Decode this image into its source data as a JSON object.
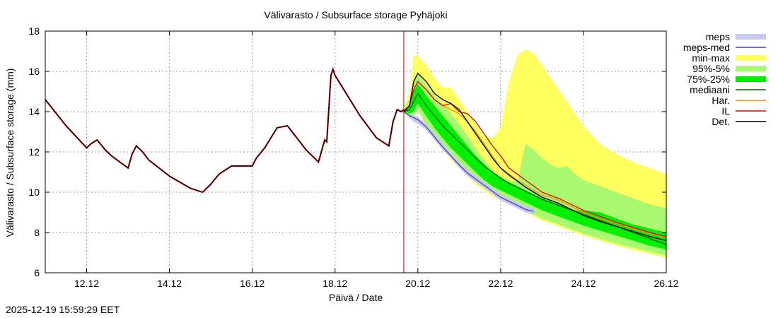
{
  "chart_data": {
    "type": "line",
    "title": "Välivarasto / Subsurface storage  Pyhäjoki",
    "xlabel": "Päivä / Date",
    "ylabel": "Välivarasto / Subsurface storage (mm)",
    "x_unit": "days since 11.12 00:00",
    "xlim": [
      0,
      15
    ],
    "ylim": [
      6,
      18
    ],
    "yticks": [
      6,
      8,
      10,
      12,
      14,
      16,
      18
    ],
    "xticks": [
      {
        "x": 1,
        "label": "12.12"
      },
      {
        "x": 3,
        "label": "14.12"
      },
      {
        "x": 5,
        "label": "16.12"
      },
      {
        "x": 7,
        "label": "18.12"
      },
      {
        "x": 9,
        "label": "20.12"
      },
      {
        "x": 11,
        "label": "22.12"
      },
      {
        "x": 13,
        "label": "24.12"
      },
      {
        "x": 15,
        "label": "26.12"
      }
    ],
    "grid": true,
    "forecast_start_x": 8.66,
    "colors": {
      "meps": "#c8c8f0",
      "meps_med": "#4040c0",
      "minmax": "#ffff60",
      "p95_5": "#a8f870",
      "p75_25": "#00ee00",
      "median": "#006400",
      "har": "#ff8c00",
      "il": "#ee0000",
      "det": "#000000",
      "vline": "#cc0000",
      "grid": "#a0a0a0"
    },
    "legend": [
      {
        "label": "meps",
        "style": "band",
        "key": "meps"
      },
      {
        "label": "meps-med",
        "style": "line",
        "key": "meps_med"
      },
      {
        "label": "min-max",
        "style": "band",
        "key": "minmax"
      },
      {
        "label": "95%-5%",
        "style": "band",
        "key": "p95_5"
      },
      {
        "label": "75%-25%",
        "style": "band",
        "key": "p75_25"
      },
      {
        "label": "mediaani",
        "style": "line",
        "key": "median"
      },
      {
        "label": "Har.",
        "style": "line",
        "key": "har"
      },
      {
        "label": "IL",
        "style": "line",
        "key": "il"
      },
      {
        "label": "Det.",
        "style": "line",
        "key": "det"
      }
    ],
    "observed": {
      "x": [
        0,
        0.5,
        1.0,
        1.1,
        1.25,
        1.45,
        1.6,
        2.0,
        2.1,
        2.2,
        2.35,
        2.5,
        3.0,
        3.5,
        3.8,
        4.0,
        4.2,
        4.5,
        4.7,
        5.0,
        5.1,
        5.3,
        5.6,
        5.85,
        6.0,
        6.3,
        6.6,
        6.75,
        6.8,
        6.9,
        6.95,
        7.0,
        7.3,
        7.6,
        8.0,
        8.3,
        8.4,
        8.5,
        8.6,
        8.66
      ],
      "y": [
        14.6,
        13.3,
        12.2,
        12.4,
        12.6,
        12.1,
        11.8,
        11.2,
        11.9,
        12.3,
        12.0,
        11.6,
        10.8,
        10.2,
        10.0,
        10.4,
        10.9,
        11.3,
        11.3,
        11.3,
        11.7,
        12.2,
        13.2,
        13.3,
        12.9,
        12.1,
        11.5,
        12.6,
        12.5,
        15.8,
        16.1,
        15.8,
        14.8,
        13.8,
        12.7,
        12.3,
        13.5,
        14.1,
        14.0,
        14.1
      ]
    },
    "forecast_x": [
      8.66,
      8.8,
      8.9,
      9.0,
      9.2,
      9.4,
      9.6,
      9.8,
      10.0,
      10.2,
      10.4,
      10.6,
      10.8,
      11.0,
      11.2,
      11.4,
      11.6,
      11.8,
      12.0,
      12.2,
      12.4,
      12.6,
      12.8,
      13.0,
      13.4,
      13.8,
      14.2,
      14.6,
      15.0
    ],
    "series": [
      {
        "key": "minmax",
        "name": "min-max",
        "lower": [
          14.0,
          13.8,
          13.8,
          14.1,
          13.2,
          12.6,
          12.1,
          11.6,
          11.2,
          10.8,
          10.4,
          10.1,
          9.8,
          9.6,
          9.4,
          9.2,
          9.0,
          8.8,
          8.6,
          8.45,
          8.3,
          8.15,
          8.0,
          7.85,
          7.6,
          7.35,
          7.15,
          6.95,
          6.75
        ],
        "upper": [
          14.2,
          15.0,
          16.8,
          16.8,
          16.3,
          15.7,
          15.2,
          15.2,
          14.6,
          14.0,
          13.4,
          12.8,
          12.7,
          13.2,
          15.5,
          16.8,
          17.1,
          16.9,
          16.3,
          15.7,
          15.1,
          14.5,
          13.9,
          13.3,
          12.4,
          11.9,
          11.5,
          11.2,
          10.9
        ]
      },
      {
        "key": "p95_5",
        "name": "95%-5%",
        "lower": [
          14.0,
          13.8,
          13.8,
          14.1,
          13.3,
          12.7,
          12.2,
          11.7,
          11.3,
          10.9,
          10.5,
          10.2,
          9.9,
          9.7,
          9.5,
          9.3,
          9.1,
          8.9,
          8.7,
          8.55,
          8.4,
          8.25,
          8.1,
          7.95,
          7.7,
          7.45,
          7.25,
          7.05,
          6.85
        ],
        "upper": [
          14.1,
          14.6,
          15.6,
          15.9,
          15.3,
          14.8,
          14.4,
          13.9,
          13.4,
          12.8,
          12.2,
          11.6,
          11.1,
          10.8,
          10.6,
          10.5,
          12.4,
          12.1,
          11.7,
          11.4,
          11.2,
          11.3,
          10.9,
          10.6,
          10.3,
          10.0,
          9.7,
          9.4,
          9.2
        ]
      },
      {
        "key": "p75_25",
        "name": "75%-25%",
        "lower": [
          14.0,
          13.9,
          14.0,
          14.4,
          13.8,
          13.2,
          12.7,
          12.2,
          11.8,
          11.4,
          11.0,
          10.6,
          10.3,
          10.1,
          9.9,
          9.7,
          9.5,
          9.3,
          9.1,
          8.95,
          8.8,
          8.65,
          8.5,
          8.35,
          8.1,
          7.85,
          7.6,
          7.35,
          7.15
        ],
        "upper": [
          14.1,
          14.3,
          15.0,
          15.4,
          14.8,
          14.3,
          13.8,
          13.3,
          12.8,
          12.3,
          11.8,
          11.4,
          11.0,
          10.7,
          10.5,
          10.3,
          10.1,
          9.9,
          9.7,
          9.55,
          9.4,
          9.25,
          9.1,
          9.1,
          9.0,
          8.7,
          8.4,
          8.2,
          8.0
        ]
      },
      {
        "key": "meps",
        "name": "meps",
        "end_x": 11.9,
        "lower": [
          13.95,
          13.7,
          13.5,
          13.4,
          13.1,
          12.6,
          12.1,
          11.7,
          11.2,
          10.8,
          10.5,
          10.2,
          9.9,
          9.6,
          9.4,
          9.2,
          9.0,
          8.9
        ],
        "upper": [
          14.0,
          13.85,
          13.8,
          13.75,
          13.4,
          12.9,
          12.4,
          11.95,
          11.5,
          11.1,
          10.8,
          10.5,
          10.2,
          9.9,
          9.7,
          9.5,
          9.3,
          9.2
        ]
      },
      {
        "key": "meps_med",
        "name": "meps-med",
        "end_x": 11.9,
        "values": [
          14.0,
          13.8,
          13.7,
          13.6,
          13.25,
          12.75,
          12.25,
          11.8,
          11.35,
          10.95,
          10.65,
          10.35,
          10.05,
          9.75,
          9.55,
          9.35,
          9.15,
          9.05
        ]
      },
      {
        "key": "median",
        "name": "mediaani",
        "values": [
          14.0,
          14.1,
          14.5,
          14.9,
          14.3,
          13.8,
          13.3,
          12.9,
          12.5,
          12.1,
          11.7,
          11.3,
          11.0,
          10.7,
          10.45,
          10.25,
          10.05,
          9.85,
          9.65,
          9.5,
          9.35,
          9.2,
          9.05,
          8.9,
          8.6,
          8.3,
          8.0,
          7.7,
          7.4
        ]
      },
      {
        "key": "har",
        "name": "Har.",
        "values": [
          14.0,
          14.3,
          15.1,
          15.5,
          15.1,
          14.6,
          14.3,
          14.1,
          13.9,
          13.5,
          13.0,
          12.4,
          11.8,
          11.2,
          10.9,
          10.6,
          10.35,
          10.1,
          9.85,
          9.75,
          9.6,
          9.4,
          9.2,
          9.0,
          8.7,
          8.45,
          8.2,
          7.95,
          7.75
        ]
      },
      {
        "key": "il",
        "name": "IL",
        "values": [
          14.0,
          14.3,
          15.1,
          15.5,
          15.1,
          14.6,
          14.3,
          14.4,
          14.0,
          13.9,
          13.5,
          12.9,
          12.3,
          11.8,
          11.2,
          10.9,
          10.6,
          10.3,
          10.0,
          9.85,
          9.7,
          9.5,
          9.3,
          9.1,
          8.8,
          8.5,
          8.25,
          8.0,
          7.8
        ]
      },
      {
        "key": "det",
        "name": "Det.",
        "values": [
          14.0,
          14.3,
          15.5,
          15.9,
          15.5,
          14.9,
          14.6,
          14.4,
          14.1,
          13.5,
          12.9,
          12.3,
          11.7,
          11.2,
          10.85,
          10.55,
          10.25,
          10.0,
          9.75,
          9.6,
          9.45,
          9.25,
          9.05,
          8.85,
          8.55,
          8.3,
          8.05,
          7.8,
          7.6
        ]
      }
    ]
  },
  "footer": {
    "timestamp": "2025-12-19 15:59:29 EET"
  }
}
